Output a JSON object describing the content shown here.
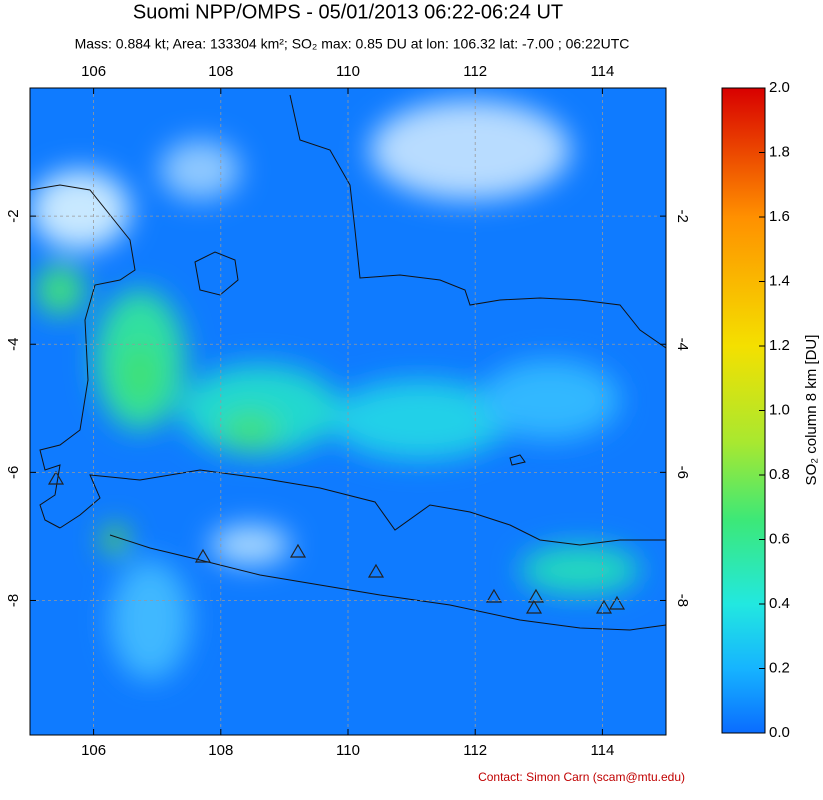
{
  "chart_data": {
    "type": "map",
    "title": "Suomi NPP/OMPS - 05/01/2013 06:22-06:24 UT",
    "subtitle": "Mass: 0.884 kt; Area: 133304 km²; SO₂ max: 0.85 DU at lon: 106.32 lat: -7.00 ; 06:22UTC",
    "xlim": [
      105,
      115
    ],
    "xticks": [
      106,
      108,
      110,
      112,
      114
    ],
    "ylim": [
      -10.1,
      0
    ],
    "yticks": [
      -2,
      -4,
      -6,
      -8
    ],
    "grid": true,
    "colorbar_label": "SO₂ column 8 km [DU]",
    "colorbar_lim": [
      0,
      2
    ],
    "colorbar_ticks": [
      {
        "value": 0,
        "label": "0.0"
      },
      {
        "value": 0.2,
        "label": "0.2"
      },
      {
        "value": 0.4,
        "label": "0.4"
      },
      {
        "value": 0.6,
        "label": "0.6"
      },
      {
        "value": 0.8,
        "label": "0.8"
      },
      {
        "value": 1,
        "label": "1.0"
      },
      {
        "value": 1.2,
        "label": "1.2"
      },
      {
        "value": 1.4,
        "label": "1.4"
      },
      {
        "value": 1.6,
        "label": "1.6"
      },
      {
        "value": 1.8,
        "label": "1.8"
      },
      {
        "value": 2,
        "label": "2.0"
      }
    ],
    "annotation": "Contact: Simon Carn (scam@mtu.edu)"
  }
}
